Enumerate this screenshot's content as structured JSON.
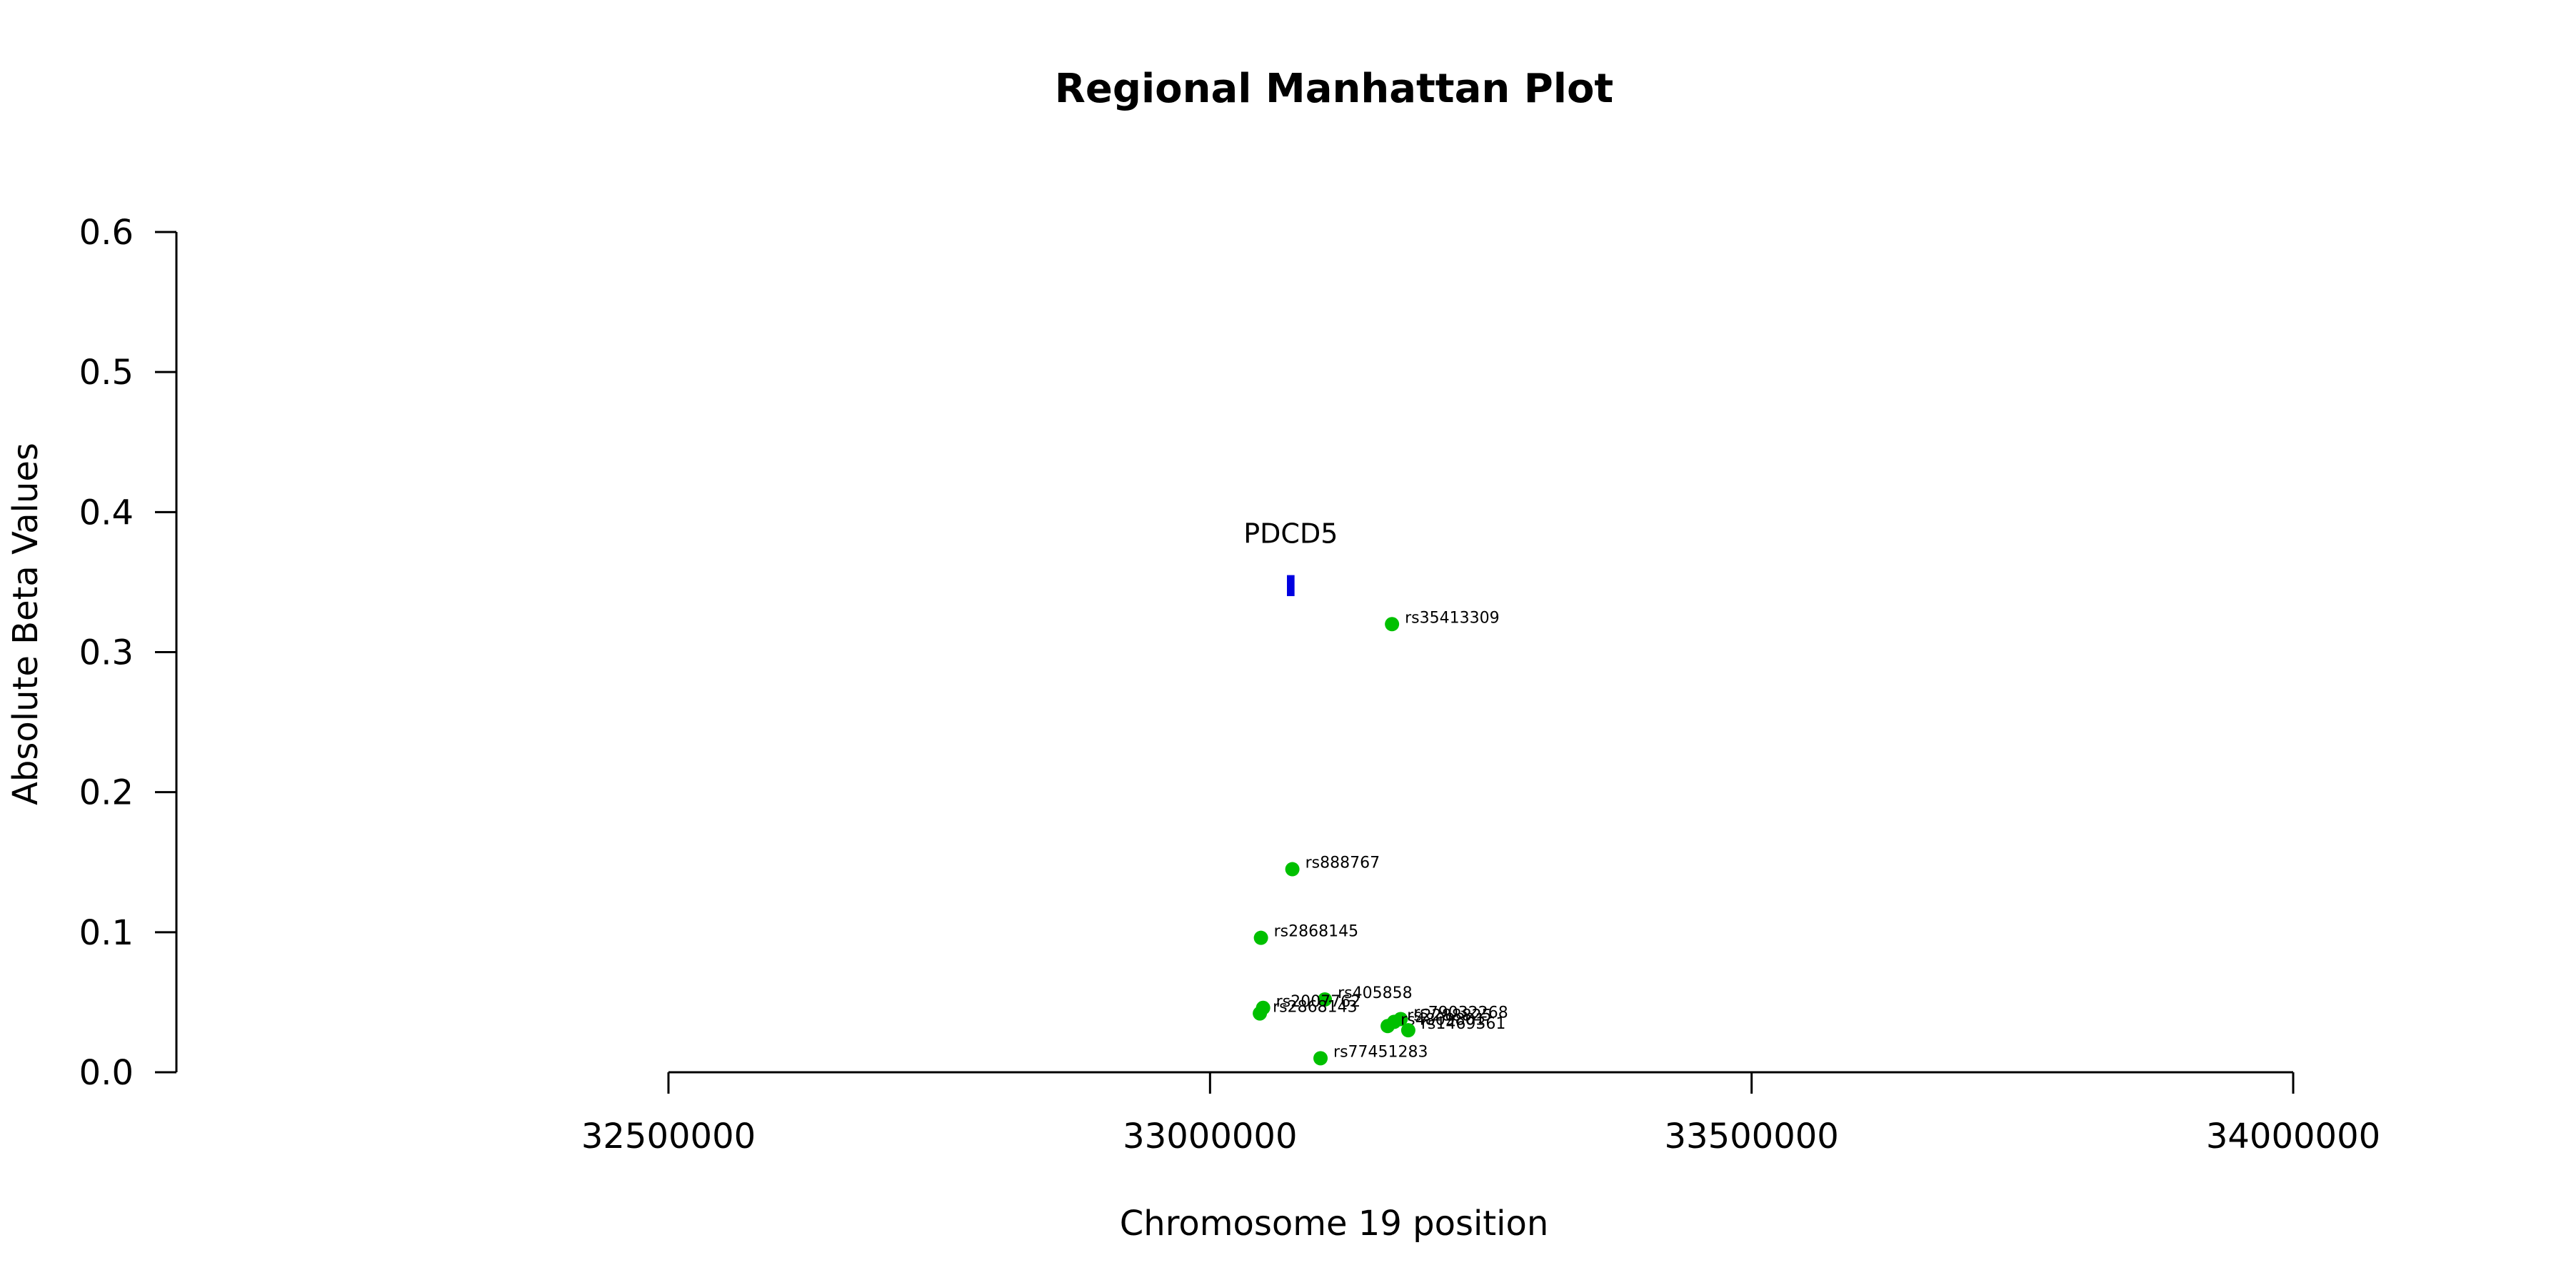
{
  "chart_data": {
    "type": "scatter",
    "title": "Regional Manhattan Plot",
    "xlabel": "Chromosome 19 position",
    "ylabel": "Absolute Beta Values",
    "xlim": [
      32500000,
      34000000
    ],
    "ylim": [
      0,
      0.6
    ],
    "x_ticks": [
      {
        "value": 32500000,
        "label": "32500000"
      },
      {
        "value": 33000000,
        "label": "33000000"
      },
      {
        "value": 33500000,
        "label": "33500000"
      },
      {
        "value": 34000000,
        "label": "34000000"
      }
    ],
    "y_ticks": [
      {
        "value": 0.0,
        "label": "0.0"
      },
      {
        "value": 0.1,
        "label": "0.1"
      },
      {
        "value": 0.2,
        "label": "0.2"
      },
      {
        "value": 0.3,
        "label": "0.3"
      },
      {
        "value": 0.4,
        "label": "0.4"
      },
      {
        "value": 0.5,
        "label": "0.5"
      },
      {
        "value": 0.6,
        "label": "0.6"
      }
    ],
    "point_color": "#00c000",
    "gene_color": "#0000e0",
    "gene": {
      "name": "PDCD5",
      "start": 33071000,
      "end": 33078000,
      "y_low": 0.34,
      "y_high": 0.355
    },
    "points": [
      {
        "label": "rs35413309",
        "x": 33168000,
        "y": 0.32
      },
      {
        "label": "rs888767",
        "x": 33076000,
        "y": 0.145
      },
      {
        "label": "rs2868145",
        "x": 33047000,
        "y": 0.096
      },
      {
        "label": "rs405858",
        "x": 33106000,
        "y": 0.052
      },
      {
        "label": "rs2007762",
        "x": 33049000,
        "y": 0.046
      },
      {
        "label": "rs2868143",
        "x": 33046000,
        "y": 0.042
      },
      {
        "label": "rs79032268",
        "x": 33176000,
        "y": 0.038
      },
      {
        "label": "rs2288825",
        "x": 33170000,
        "y": 0.036
      },
      {
        "label": "rs4809801",
        "x": 33164000,
        "y": 0.033
      },
      {
        "label": "rs1469361",
        "x": 33183000,
        "y": 0.03
      },
      {
        "label": "rs77451283",
        "x": 33102000,
        "y": 0.01
      }
    ]
  }
}
